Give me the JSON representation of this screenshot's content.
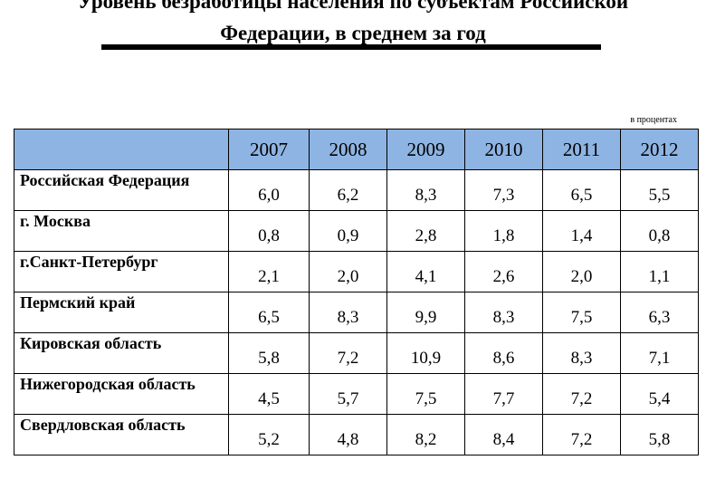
{
  "title_line1": "Уровень безработицы населения по субъектам Российской",
  "title_line2": "Федерации, в среднем за год",
  "unit_note": "в процентах",
  "years": [
    "2007",
    "2008",
    "2009",
    "2010",
    "2011",
    "2012"
  ],
  "rows": [
    {
      "region": "Российская Федерация",
      "values": [
        "6,0",
        "6,2",
        "8,3",
        "7,3",
        "6,5",
        "5,5"
      ]
    },
    {
      "region": "г. Москва",
      "values": [
        "0,8",
        "0,9",
        "2,8",
        "1,8",
        "1,4",
        "0,8"
      ]
    },
    {
      "region": "г.Санкт-Петербург",
      "values": [
        "2,1",
        "2,0",
        "4,1",
        "2,6",
        "2,0",
        "1,1"
      ]
    },
    {
      "region": "Пермский край",
      "values": [
        "6,5",
        "8,3",
        "9,9",
        "8,3",
        "7,5",
        "6,3"
      ]
    },
    {
      "region": "Кировская область",
      "values": [
        "5,8",
        "7,2",
        "10,9",
        "8,6",
        "8,3",
        "7,1"
      ]
    },
    {
      "region": "Нижегородская область",
      "values": [
        "4,5",
        "5,7",
        "7,5",
        "7,7",
        "7,2",
        "5,4"
      ]
    },
    {
      "region": "Свердловская область",
      "values": [
        "5,2",
        "4,8",
        "8,2",
        "8,4",
        "7,2",
        "5,8"
      ]
    }
  ],
  "colors": {
    "header_fill": "#8eb4e3",
    "text": "#000000"
  }
}
